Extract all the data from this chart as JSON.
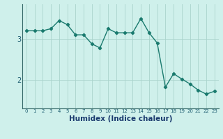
{
  "x": [
    0,
    1,
    2,
    3,
    4,
    5,
    6,
    7,
    8,
    9,
    10,
    11,
    12,
    13,
    14,
    15,
    16,
    17,
    18,
    19,
    20,
    21,
    22,
    23
  ],
  "y": [
    3.2,
    3.2,
    3.2,
    3.25,
    3.45,
    3.35,
    3.1,
    3.1,
    2.88,
    2.78,
    3.25,
    3.15,
    3.15,
    3.15,
    3.5,
    3.15,
    2.9,
    1.82,
    2.15,
    2.02,
    1.9,
    1.75,
    1.65,
    1.72
  ],
  "line_color": "#1a7a6e",
  "marker": "D",
  "marker_size": 2.2,
  "linewidth": 1.0,
  "bg_color": "#cff0eb",
  "grid_color": "#aad4cc",
  "xlabel": "Humidex (Indice chaleur)",
  "yticks": [
    2,
    3
  ],
  "ylim": [
    1.3,
    3.85
  ],
  "xlim": [
    -0.5,
    23.5
  ],
  "xtick_labels": [
    "0",
    "1",
    "2",
    "3",
    "4",
    "5",
    "6",
    "7",
    "8",
    "9",
    "10",
    "11",
    "12",
    "13",
    "14",
    "15",
    "16",
    "17",
    "18",
    "19",
    "20",
    "21",
    "22",
    "23"
  ],
  "axis_label_color": "#1a3a6e",
  "tick_color": "#1a5a6e",
  "xlabel_fontsize": 7.5,
  "xlabel_fontweight": "bold",
  "ytick_fontsize": 7,
  "xtick_fontsize": 5
}
